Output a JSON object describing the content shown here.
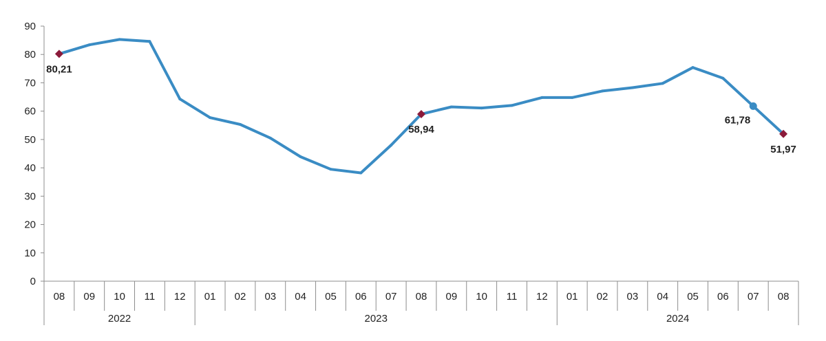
{
  "chart_data": {
    "type": "line",
    "title": "",
    "xlabel": "",
    "ylabel": "",
    "ylim": [
      0,
      90
    ],
    "yticks": [
      "0",
      "10",
      "20",
      "30",
      "40",
      "50",
      "60",
      "70",
      "80",
      "90"
    ],
    "grid": false,
    "legend": "none",
    "line_color": "#3a8cc4",
    "marker_color_red": "#8b1a3a",
    "marker_color_blue": "#3a8cc4",
    "categories": [
      "08",
      "09",
      "10",
      "11",
      "12",
      "01",
      "02",
      "03",
      "04",
      "05",
      "06",
      "07",
      "08",
      "09",
      "10",
      "11",
      "12",
      "01",
      "02",
      "03",
      "04",
      "05",
      "06",
      "07",
      "08"
    ],
    "year_groups": [
      {
        "label": "2022",
        "start": 0,
        "end": 4
      },
      {
        "label": "2023",
        "start": 5,
        "end": 16
      },
      {
        "label": "2024",
        "start": 17,
        "end": 24
      }
    ],
    "series": [
      {
        "values": [
          80.21,
          83.4,
          85.3,
          84.6,
          64.3,
          57.7,
          55.3,
          50.5,
          43.9,
          39.5,
          38.2,
          48.0,
          58.94,
          61.5,
          61.1,
          62.0,
          64.8,
          64.8,
          67.1,
          68.3,
          69.8,
          75.4,
          71.6,
          61.78,
          51.97
        ]
      }
    ],
    "annotations": [
      {
        "index": 0,
        "value": 80.21,
        "text": "80,21",
        "marker": "diamond",
        "color": "red",
        "position": "below"
      },
      {
        "index": 12,
        "value": 58.94,
        "text": "58,94",
        "marker": "diamond",
        "color": "red",
        "position": "below"
      },
      {
        "index": 23,
        "value": 61.78,
        "text": "61,78",
        "marker": "circle",
        "color": "blue",
        "position": "below-left"
      },
      {
        "index": 24,
        "value": 51.97,
        "text": "51,97",
        "marker": "diamond",
        "color": "red",
        "position": "below"
      }
    ]
  }
}
